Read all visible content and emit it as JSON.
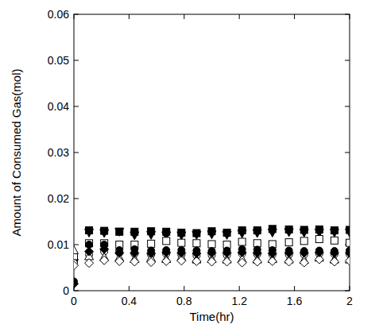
{
  "chart_data": {
    "type": "scatter",
    "x_label": "Time(hr)",
    "y_label": "Amount of Consumed Gas(mol)",
    "x": [
      0,
      0.11,
      0.22,
      0.33,
      0.44,
      0.56,
      0.67,
      0.78,
      0.89,
      1.0,
      1.11,
      1.22,
      1.33,
      1.44,
      1.56,
      1.67,
      1.78,
      1.89,
      2.0
    ],
    "series": [
      {
        "color": "#000000",
        "marker": "square",
        "values": [
          0.007,
          0.0131,
          0.013,
          0.0128,
          0.0128,
          0.0129,
          0.0128,
          0.0126,
          0.0125,
          0.0129,
          0.0126,
          0.0131,
          0.0131,
          0.0134,
          0.0133,
          0.0132,
          0.0133,
          0.0131,
          0.0132
        ]
      },
      {
        "color": "#000000",
        "marker": "triangle-down",
        "values": [
          0.006,
          0.0126,
          0.0125,
          0.0128,
          0.012,
          0.0121,
          0.012,
          0.012,
          0.0121,
          0.0122,
          0.0121,
          0.0124,
          0.0125,
          0.0126,
          0.0127,
          0.0126,
          0.0126,
          0.0126,
          0.0126
        ]
      },
      {
        "color": "#000000",
        "marker": "square-open",
        "values": [
          0.0075,
          0.0103,
          0.0103,
          0.01,
          0.01,
          0.0102,
          0.0108,
          0.0104,
          0.0103,
          0.0101,
          0.01,
          0.0106,
          0.0103,
          0.0101,
          0.0105,
          0.0108,
          0.0112,
          0.0109,
          0.0104
        ]
      },
      {
        "color": "#000000",
        "marker": "circle",
        "values": [
          0.002,
          0.01,
          0.01,
          0.0088,
          0.009,
          0.0087,
          0.0088,
          0.0088,
          0.0087,
          0.0086,
          0.0087,
          0.009,
          0.0089,
          0.0088,
          0.0087,
          0.0086,
          0.0087,
          0.0086,
          0.0087
        ]
      },
      {
        "color": "#000000",
        "marker": "circle-open",
        "values": [
          0.006,
          0.0078,
          0.0085,
          0.0082,
          0.008,
          0.0078,
          0.008,
          0.0078,
          0.0076,
          0.0077,
          0.0077,
          0.008,
          0.0079,
          0.0078,
          0.0078,
          0.0078,
          0.008,
          0.0079,
          0.0079
        ]
      },
      {
        "color": "#000000",
        "marker": "triangle-open",
        "values": [
          0.0088,
          0.0075,
          0.0073,
          0.0072,
          0.0069,
          0.0071,
          0.0069,
          0.0073,
          0.0068,
          0.0069,
          0.0068,
          0.0069,
          0.0068,
          0.0069,
          0.0068,
          0.0067,
          0.0072,
          0.0068,
          0.0068
        ]
      },
      {
        "color": "#000000",
        "marker": "diamond-open",
        "values": [
          0.0055,
          0.006,
          0.0066,
          0.0064,
          0.0063,
          0.0062,
          0.0064,
          0.0065,
          0.0064,
          0.0063,
          0.0063,
          0.0061,
          0.0063,
          0.0064,
          0.0063,
          0.0061,
          0.0068,
          0.0063,
          0.0065
        ]
      },
      {
        "color": "#000000",
        "marker": "diamond",
        "values": [
          0.0015,
          0.0085,
          0.009,
          0.0082,
          0.0082,
          0.0081,
          0.0083,
          0.0082,
          0.0081,
          0.0082,
          0.0082,
          0.0083,
          0.0082,
          0.0081,
          0.0082,
          0.0082,
          0.0083,
          0.0082,
          0.0082
        ]
      }
    ],
    "xlim": [
      0,
      2
    ],
    "xticks": [
      0,
      0.4,
      0.8,
      1.2,
      1.6,
      2
    ],
    "ylim": [
      0,
      0.06
    ],
    "yticks": [
      0,
      0.01,
      0.02,
      0.03,
      0.04,
      0.05,
      0.06
    ],
    "grid": false
  }
}
